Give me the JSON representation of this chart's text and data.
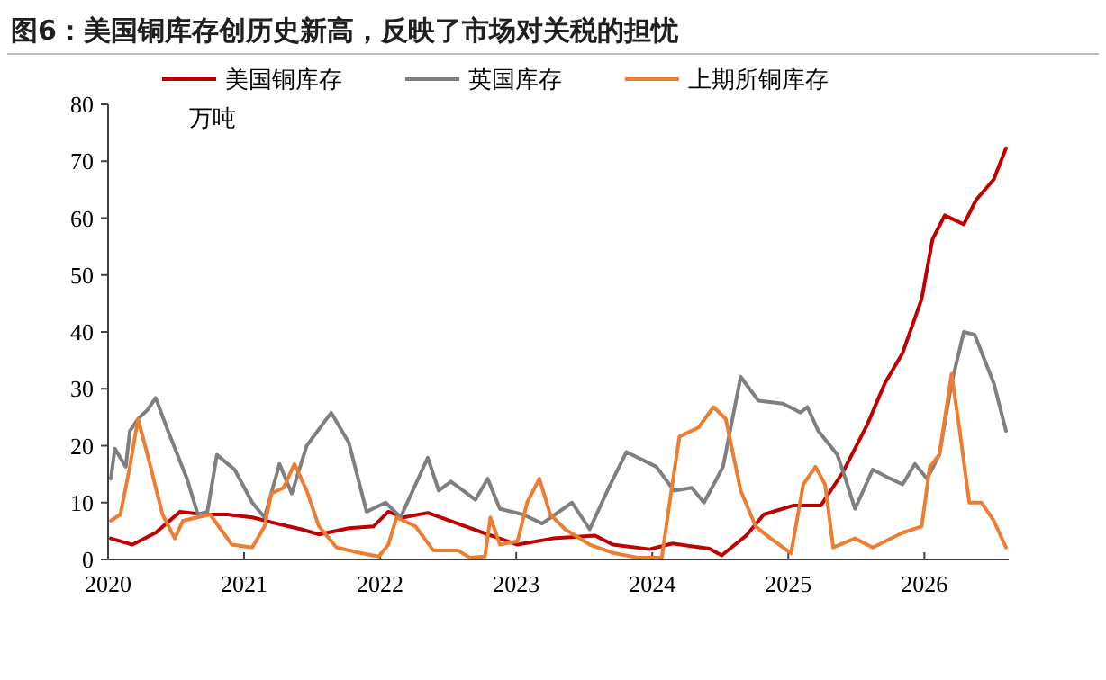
{
  "chart_data": {
    "type": "line",
    "title": "图6：美国铜库存创历史新高，反映了市场对关税的担忧",
    "ylabel": "万吨",
    "legend": "top",
    "grid": false,
    "xlim": [
      2020,
      2026.62
    ],
    "xticks": [
      2020,
      2021,
      2022,
      2023,
      2024,
      2025,
      2026
    ],
    "ylim": [
      0,
      80
    ],
    "yticks": [
      0,
      10,
      20,
      30,
      40,
      50,
      60,
      70,
      80
    ],
    "series": [
      {
        "name": "美国铜库存",
        "color": "#c00000",
        "x": [
          2020.02,
          2020.18,
          2020.35,
          2020.53,
          2020.7,
          2020.88,
          2021.06,
          2021.24,
          2021.42,
          2021.55,
          2021.77,
          2021.95,
          2022.06,
          2022.17,
          2022.35,
          2022.57,
          2022.79,
          2023.01,
          2023.27,
          2023.58,
          2023.71,
          2023.98,
          2024.15,
          2024.42,
          2024.51,
          2024.69,
          2024.82,
          2025.04,
          2025.24,
          2025.4,
          2025.58,
          2025.71,
          2025.84,
          2025.98,
          2026.06,
          2026.15,
          2026.29,
          2026.38,
          2026.51,
          2026.6
        ],
        "values": [
          3.7,
          2.6,
          4.7,
          8.4,
          7.9,
          7.9,
          7.4,
          6.3,
          5.3,
          4.4,
          5.5,
          5.8,
          8.4,
          7.4,
          8.2,
          6.3,
          4.4,
          2.6,
          3.7,
          4.2,
          2.6,
          1.8,
          2.8,
          1.9,
          0.7,
          4.2,
          7.9,
          9.5,
          9.5,
          15.3,
          23.7,
          31,
          36.3,
          45.8,
          56.3,
          60.5,
          58.9,
          63.2,
          66.8,
          72.3
        ]
      },
      {
        "name": "英国库存",
        "color": "#7f7f7f",
        "x": [
          2020.02,
          2020.05,
          2020.13,
          2020.16,
          2020.22,
          2020.29,
          2020.35,
          2020.44,
          2020.58,
          2020.66,
          2020.73,
          2020.8,
          2020.93,
          2021.06,
          2021.15,
          2021.26,
          2021.35,
          2021.46,
          2021.64,
          2021.77,
          2021.9,
          2022.04,
          2022.15,
          2022.35,
          2022.43,
          2022.52,
          2022.7,
          2022.79,
          2022.88,
          2023.05,
          2023.19,
          2023.41,
          2023.54,
          2023.67,
          2023.81,
          2024.03,
          2024.16,
          2024.29,
          2024.38,
          2024.52,
          2024.65,
          2024.78,
          2024.96,
          2025.09,
          2025.14,
          2025.22,
          2025.36,
          2025.42,
          2025.49,
          2025.62,
          2025.75,
          2025.84,
          2025.93,
          2026.02,
          2026.11,
          2026.2,
          2026.29,
          2026.37,
          2026.51,
          2026.6
        ],
        "values": [
          14.2,
          19.5,
          16.3,
          22.6,
          24.7,
          26.3,
          28.4,
          22.6,
          14.2,
          7.9,
          8.4,
          18.4,
          15.8,
          10,
          7.4,
          16.8,
          11.6,
          20,
          25.8,
          20.5,
          8.4,
          10,
          7.4,
          17.9,
          12.1,
          13.7,
          10.5,
          14.2,
          8.9,
          7.9,
          6.3,
          10,
          5.3,
          12.1,
          18.9,
          16.3,
          12.1,
          12.6,
          10,
          16.3,
          32.1,
          27.9,
          27.4,
          25.8,
          26.8,
          22.6,
          18.4,
          14.2,
          8.9,
          15.8,
          14.2,
          13.2,
          16.8,
          14.2,
          18.4,
          31,
          40,
          39.5,
          31,
          22.6
        ]
      },
      {
        "name": "上期所铜库存",
        "color": "#ed7d31",
        "x": [
          2020.02,
          2020.09,
          2020.16,
          2020.22,
          2020.29,
          2020.4,
          2020.49,
          2020.55,
          2020.75,
          2020.91,
          2021.06,
          2021.15,
          2021.2,
          2021.29,
          2021.37,
          2021.46,
          2021.55,
          2021.68,
          2021.86,
          2021.99,
          2022.06,
          2022.12,
          2022.26,
          2022.39,
          2022.57,
          2022.66,
          2022.77,
          2022.81,
          2022.88,
          2023.01,
          2023.08,
          2023.17,
          2023.25,
          2023.36,
          2023.54,
          2023.72,
          2023.9,
          2024.07,
          2024.14,
          2024.2,
          2024.34,
          2024.45,
          2024.54,
          2024.65,
          2024.76,
          2024.87,
          2025.02,
          2025.11,
          2025.2,
          2025.27,
          2025.33,
          2025.49,
          2025.62,
          2025.84,
          2025.98,
          2026.04,
          2026.11,
          2026.2,
          2026.26,
          2026.33,
          2026.42,
          2026.51,
          2026.6
        ],
        "values": [
          6.8,
          7.9,
          16.3,
          24.7,
          18.4,
          7.9,
          3.7,
          6.8,
          7.9,
          2.6,
          2.1,
          5.8,
          11.6,
          12.6,
          16.8,
          12.1,
          5.8,
          2.1,
          1.1,
          0.5,
          2.6,
          7.4,
          5.8,
          1.6,
          1.6,
          0.3,
          0.5,
          7.4,
          2.6,
          3.2,
          10,
          14.2,
          7.9,
          5.3,
          2.6,
          1.1,
          0.3,
          0.3,
          12.1,
          21.6,
          23.2,
          26.8,
          24.7,
          12.1,
          5.8,
          3.7,
          1.1,
          13.2,
          16.3,
          13.2,
          2.1,
          3.7,
          2.1,
          4.7,
          5.8,
          16.3,
          18.4,
          32.6,
          22.6,
          10,
          10,
          6.8,
          2.1
        ]
      }
    ]
  }
}
